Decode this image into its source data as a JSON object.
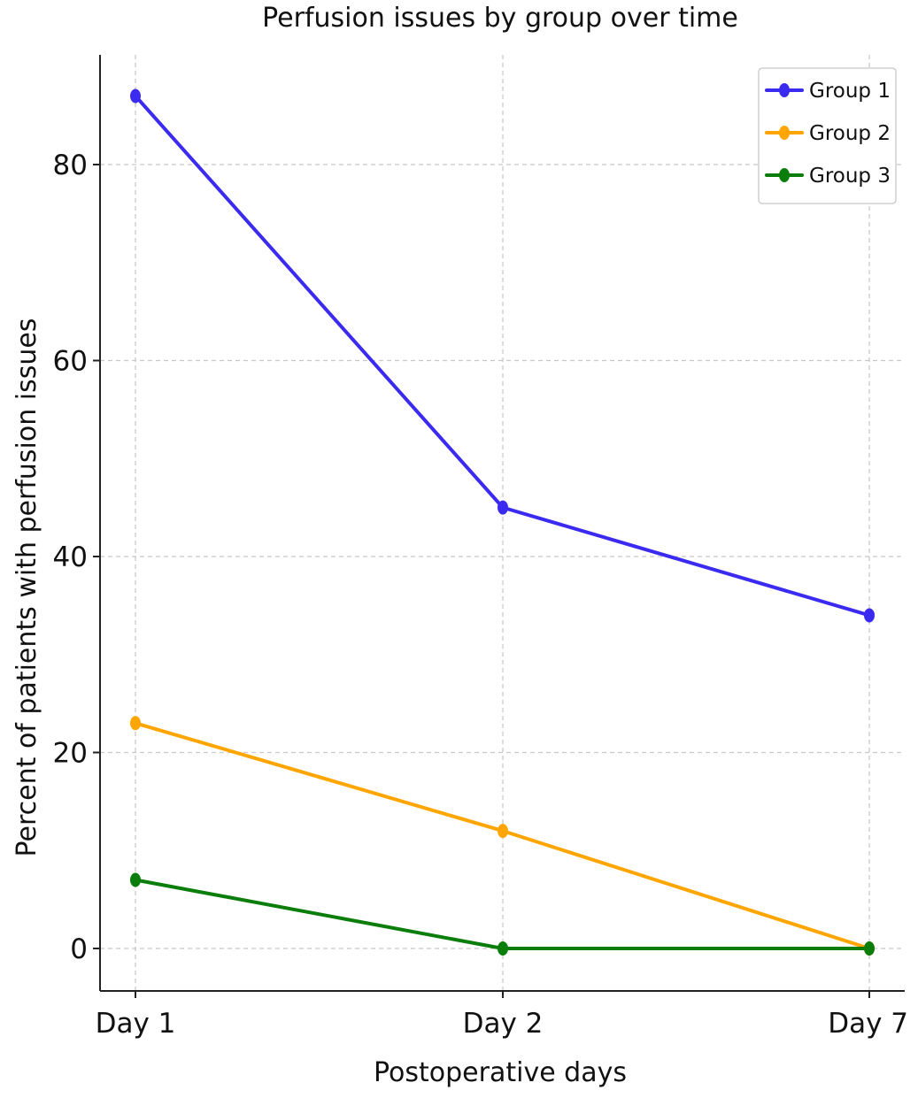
{
  "chart_data": {
    "type": "line",
    "title": "Perfusion issues by group over time",
    "xlabel": "Postoperative days",
    "ylabel": "Percent of patients with perfusion issues",
    "categories": [
      "Day 1",
      "Day 2",
      "Day 7"
    ],
    "yticks": [
      0,
      20,
      40,
      60,
      80
    ],
    "ylim": [
      -4.5,
      92
    ],
    "grid": true,
    "legend_position": "top-right",
    "series": [
      {
        "name": "Group 1",
        "color": "#3b2bf0",
        "values": [
          87,
          45,
          34
        ]
      },
      {
        "name": "Group 2",
        "color": "#ffa500",
        "values": [
          23,
          12,
          0
        ]
      },
      {
        "name": "Group 3",
        "color": "#0a7d0a",
        "values": [
          7,
          0,
          0
        ]
      }
    ]
  }
}
